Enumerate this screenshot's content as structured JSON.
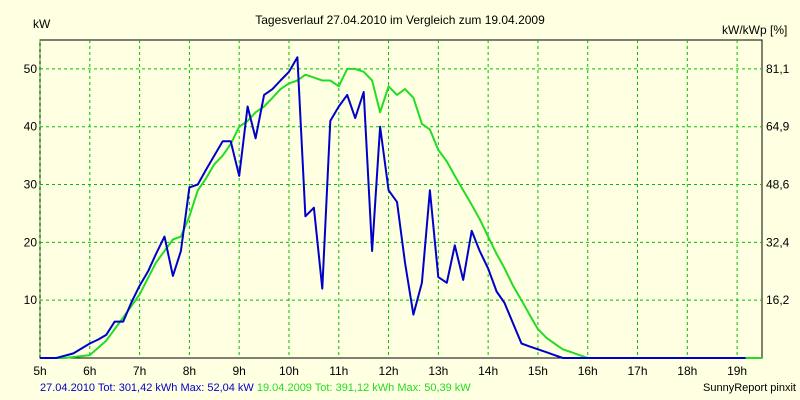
{
  "chart_data": {
    "type": "line",
    "title": "Tagesverlauf 27.04.2010 im Vergleich zum 19.04.2009",
    "ylabel_left": "kW",
    "ylabel_right": "kW/kWp [%]",
    "xlim": [
      5,
      19.5
    ],
    "ylim": [
      0,
      55
    ],
    "x_ticks": [
      5,
      6,
      7,
      8,
      9,
      10,
      11,
      12,
      13,
      14,
      15,
      16,
      17,
      18,
      19
    ],
    "x_tick_labels": [
      "5h",
      "6h",
      "7h",
      "8h",
      "9h",
      "10h",
      "11h",
      "12h",
      "13h",
      "14h",
      "15h",
      "16h",
      "17h",
      "18h",
      "19h"
    ],
    "y_ticks_left": [
      10,
      20,
      30,
      40,
      50
    ],
    "y_tick_labels_left": [
      "10",
      "20",
      "30",
      "40",
      "50"
    ],
    "y_ticks_right": [
      10,
      20,
      30,
      40,
      50
    ],
    "y_tick_labels_right": [
      "16,2",
      "32,4",
      "48,6",
      "64,9",
      "81,1"
    ],
    "grid": true,
    "legend": "bottom",
    "series": [
      {
        "name": "27.04.2010 Tot: 301,42 kWh Max: 52,04 kW",
        "color": "#0000cc",
        "x": [
          5.0,
          5.33,
          5.67,
          6.0,
          6.17,
          6.33,
          6.5,
          6.67,
          6.83,
          7.0,
          7.17,
          7.33,
          7.5,
          7.67,
          7.83,
          8.0,
          8.17,
          8.33,
          8.5,
          8.67,
          8.83,
          9.0,
          9.17,
          9.33,
          9.5,
          9.67,
          9.83,
          10.0,
          10.17,
          10.33,
          10.5,
          10.67,
          10.83,
          11.0,
          11.17,
          11.33,
          11.5,
          11.67,
          11.83,
          12.0,
          12.17,
          12.33,
          12.5,
          12.67,
          12.83,
          13.0,
          13.17,
          13.33,
          13.5,
          13.67,
          13.83,
          14.0,
          14.17,
          14.33,
          14.5,
          14.67,
          14.83,
          15.0,
          15.17,
          15.33,
          15.5,
          15.67,
          15.83,
          16.0,
          16.17,
          16.33,
          16.5,
          16.67,
          16.83,
          17.0,
          17.17,
          17.33,
          17.5,
          17.67,
          17.83,
          18.0,
          18.17,
          18.33,
          18.5,
          18.67,
          18.83,
          19.0,
          19.17
        ],
        "y": [
          0,
          0,
          0.8,
          2.5,
          3.2,
          4.0,
          6.3,
          6.3,
          9.5,
          12.5,
          15.0,
          18.0,
          21.0,
          14.2,
          18.5,
          29.5,
          30.0,
          32.5,
          35.0,
          37.5,
          37.5,
          31.5,
          43.5,
          38.0,
          45.5,
          46.5,
          48.0,
          49.5,
          52.0,
          24.5,
          26.0,
          12.0,
          41.0,
          43.5,
          45.5,
          41.5,
          46.0,
          18.5,
          40.0,
          29.0,
          27.0,
          16.5,
          7.5,
          13.0,
          29.0,
          14.0,
          13.0,
          19.5,
          13.5,
          22.0,
          18.5,
          15.5,
          11.5,
          9.5,
          6.0,
          2.5,
          2.0,
          1.5,
          1.0,
          0.5,
          0,
          0,
          0,
          0,
          0,
          0,
          0,
          0,
          0,
          0,
          0,
          0,
          0,
          0,
          0,
          0,
          0,
          0,
          0,
          0,
          0,
          0,
          0
        ]
      },
      {
        "name": "19.04.2009 Tot: 391,12 kWh Max: 50,39 kW",
        "color": "#22dd22",
        "x": [
          5.0,
          5.5,
          6.0,
          6.33,
          6.67,
          7.0,
          7.33,
          7.67,
          7.83,
          8.0,
          8.17,
          8.33,
          8.5,
          8.67,
          8.83,
          9.0,
          9.17,
          9.33,
          9.5,
          9.67,
          9.83,
          10.0,
          10.17,
          10.33,
          10.5,
          10.67,
          10.83,
          11.0,
          11.17,
          11.33,
          11.5,
          11.67,
          11.83,
          12.0,
          12.17,
          12.33,
          12.5,
          12.67,
          12.83,
          13.0,
          13.17,
          13.33,
          13.5,
          13.67,
          13.83,
          14.0,
          14.17,
          14.33,
          14.5,
          14.67,
          14.83,
          15.0,
          15.17,
          15.33,
          15.5,
          15.67,
          15.83,
          16.0,
          16.17,
          16.33,
          16.5,
          16.67,
          16.83,
          17.0,
          17.17,
          17.33,
          17.5,
          17.67,
          17.83,
          18.0,
          18.17,
          18.33,
          18.5,
          18.67,
          18.83,
          19.0,
          19.17,
          19.5
        ],
        "y": [
          0,
          0,
          0.5,
          3.0,
          7.0,
          11.0,
          16.5,
          20.5,
          21.0,
          24.5,
          29.0,
          31.0,
          33.5,
          35.0,
          37.0,
          40.0,
          41.0,
          42.5,
          43.5,
          45.0,
          46.5,
          47.5,
          48.0,
          49.0,
          48.5,
          48.0,
          48.0,
          47.0,
          50.0,
          50.0,
          49.5,
          48.0,
          42.5,
          47.0,
          45.5,
          46.5,
          45.0,
          40.5,
          39.5,
          36.0,
          34.0,
          31.5,
          29.0,
          26.5,
          24.0,
          21.0,
          18.0,
          15.5,
          12.5,
          10.0,
          7.5,
          5.0,
          3.5,
          2.5,
          1.5,
          1.0,
          0.5,
          0,
          0,
          0,
          0,
          0,
          0,
          0,
          0,
          0,
          0,
          0,
          0,
          0,
          0,
          0,
          0,
          0,
          0,
          0,
          0,
          0
        ]
      }
    ],
    "footer_credit": "SunnyReport pinxit"
  }
}
